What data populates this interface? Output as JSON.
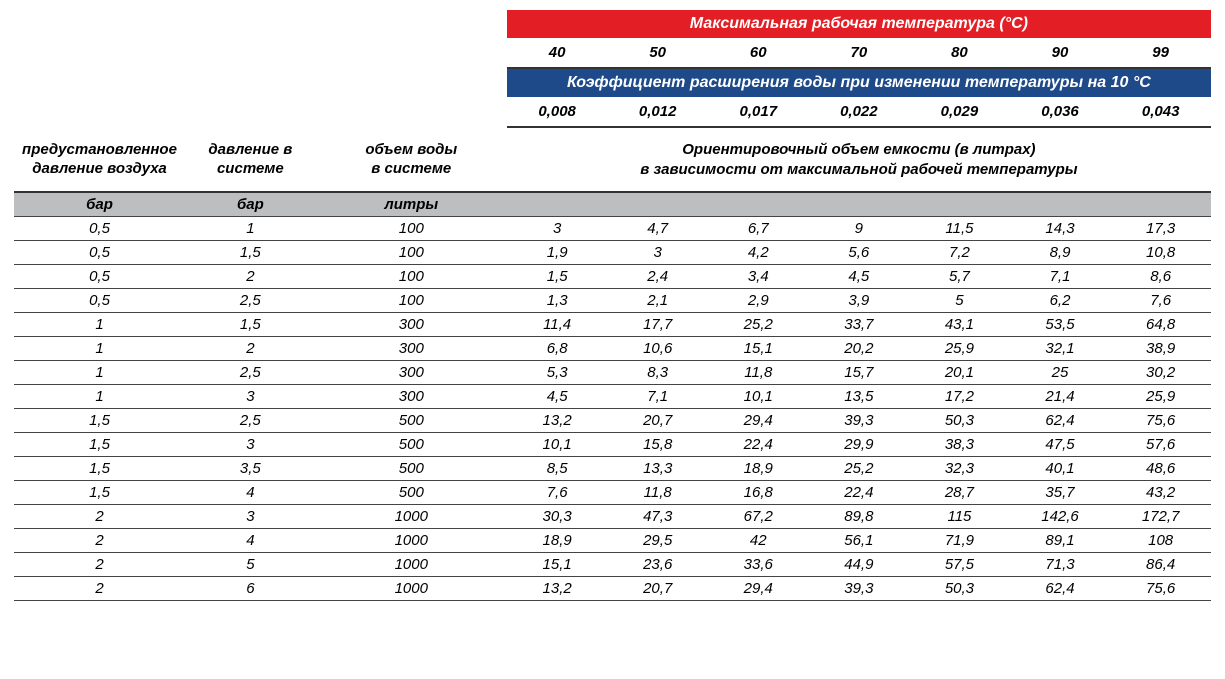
{
  "colors": {
    "red_header_bg": "#e31e24",
    "blue_header_bg": "#1e4a8a",
    "header_text": "#ffffff",
    "unit_row_bg": "#bcbec0",
    "body_text": "#000000",
    "border": "#444444",
    "background": "#ffffff"
  },
  "headers": {
    "max_temp_title": "Максимальная рабочая температура (°C)",
    "expansion_title": "Коэффициент расширения воды при изменении температуры на 10 °C",
    "temps": [
      "40",
      "50",
      "60",
      "70",
      "80",
      "90",
      "99"
    ],
    "coeffs": [
      "0,008",
      "0,012",
      "0,017",
      "0,022",
      "0,029",
      "0,036",
      "0,043"
    ],
    "col1_label_line1": "предустановленное",
    "col1_label_line2": "давление воздуха",
    "col2_label_line1": "давление в",
    "col2_label_line2": "системе",
    "col3_label_line1": "объем воды",
    "col3_label_line2": "в системе",
    "right_label_line1": "Ориентировочный объем емкости (в литрах)",
    "right_label_line2": "в зависимости от максимальной рабочей температуры"
  },
  "units": {
    "col1": "бар",
    "col2": "бар",
    "col3": "литры"
  },
  "rows": [
    {
      "p_air": "0,5",
      "p_sys": "1",
      "vol": "100",
      "v": [
        "3",
        "4,7",
        "6,7",
        "9",
        "11,5",
        "14,3",
        "17,3"
      ]
    },
    {
      "p_air": "0,5",
      "p_sys": "1,5",
      "vol": "100",
      "v": [
        "1,9",
        "3",
        "4,2",
        "5,6",
        "7,2",
        "8,9",
        "10,8"
      ]
    },
    {
      "p_air": "0,5",
      "p_sys": "2",
      "vol": "100",
      "v": [
        "1,5",
        "2,4",
        "3,4",
        "4,5",
        "5,7",
        "7,1",
        "8,6"
      ]
    },
    {
      "p_air": "0,5",
      "p_sys": "2,5",
      "vol": "100",
      "v": [
        "1,3",
        "2,1",
        "2,9",
        "3,9",
        "5",
        "6,2",
        "7,6"
      ]
    },
    {
      "p_air": "1",
      "p_sys": "1,5",
      "vol": "300",
      "v": [
        "11,4",
        "17,7",
        "25,2",
        "33,7",
        "43,1",
        "53,5",
        "64,8"
      ]
    },
    {
      "p_air": "1",
      "p_sys": "2",
      "vol": "300",
      "v": [
        "6,8",
        "10,6",
        "15,1",
        "20,2",
        "25,9",
        "32,1",
        "38,9"
      ]
    },
    {
      "p_air": "1",
      "p_sys": "2,5",
      "vol": "300",
      "v": [
        "5,3",
        "8,3",
        "11,8",
        "15,7",
        "20,1",
        "25",
        "30,2"
      ]
    },
    {
      "p_air": "1",
      "p_sys": "3",
      "vol": "300",
      "v": [
        "4,5",
        "7,1",
        "10,1",
        "13,5",
        "17,2",
        "21,4",
        "25,9"
      ]
    },
    {
      "p_air": "1,5",
      "p_sys": "2,5",
      "vol": "500",
      "v": [
        "13,2",
        "20,7",
        "29,4",
        "39,3",
        "50,3",
        "62,4",
        "75,6"
      ]
    },
    {
      "p_air": "1,5",
      "p_sys": "3",
      "vol": "500",
      "v": [
        "10,1",
        "15,8",
        "22,4",
        "29,9",
        "38,3",
        "47,5",
        "57,6"
      ]
    },
    {
      "p_air": "1,5",
      "p_sys": "3,5",
      "vol": "500",
      "v": [
        "8,5",
        "13,3",
        "18,9",
        "25,2",
        "32,3",
        "40,1",
        "48,6"
      ]
    },
    {
      "p_air": "1,5",
      "p_sys": "4",
      "vol": "500",
      "v": [
        "7,6",
        "11,8",
        "16,8",
        "22,4",
        "28,7",
        "35,7",
        "43,2"
      ]
    },
    {
      "p_air": "2",
      "p_sys": "3",
      "vol": "1000",
      "v": [
        "30,3",
        "47,3",
        "67,2",
        "89,8",
        "115",
        "142,6",
        "172,7"
      ]
    },
    {
      "p_air": "2",
      "p_sys": "4",
      "vol": "1000",
      "v": [
        "18,9",
        "29,5",
        "42",
        "56,1",
        "71,9",
        "89,1",
        "108"
      ]
    },
    {
      "p_air": "2",
      "p_sys": "5",
      "vol": "1000",
      "v": [
        "15,1",
        "23,6",
        "33,6",
        "44,9",
        "57,5",
        "71,3",
        "86,4"
      ]
    },
    {
      "p_air": "2",
      "p_sys": "6",
      "vol": "1000",
      "v": [
        "13,2",
        "20,7",
        "29,4",
        "39,3",
        "50,3",
        "62,4",
        "75,6"
      ]
    }
  ]
}
